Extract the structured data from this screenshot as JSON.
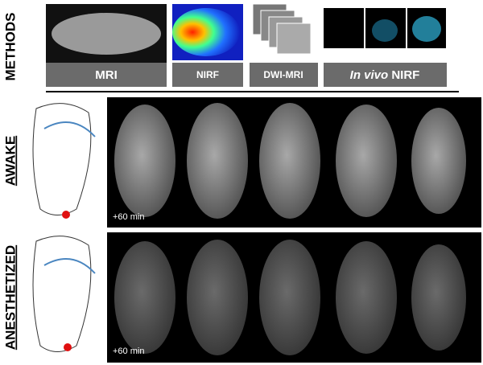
{
  "methods_label": "METHODS",
  "methods": [
    {
      "label": "MRI"
    },
    {
      "label": "NIRF"
    },
    {
      "label": "DWI-MRI"
    },
    {
      "label_italic": "In vivo",
      "label": "NIRF"
    }
  ],
  "rows": [
    {
      "label": "AWAKE",
      "time": "+60 min"
    },
    {
      "label": "ANESTHETIZED",
      "time": "+60 min"
    }
  ]
}
